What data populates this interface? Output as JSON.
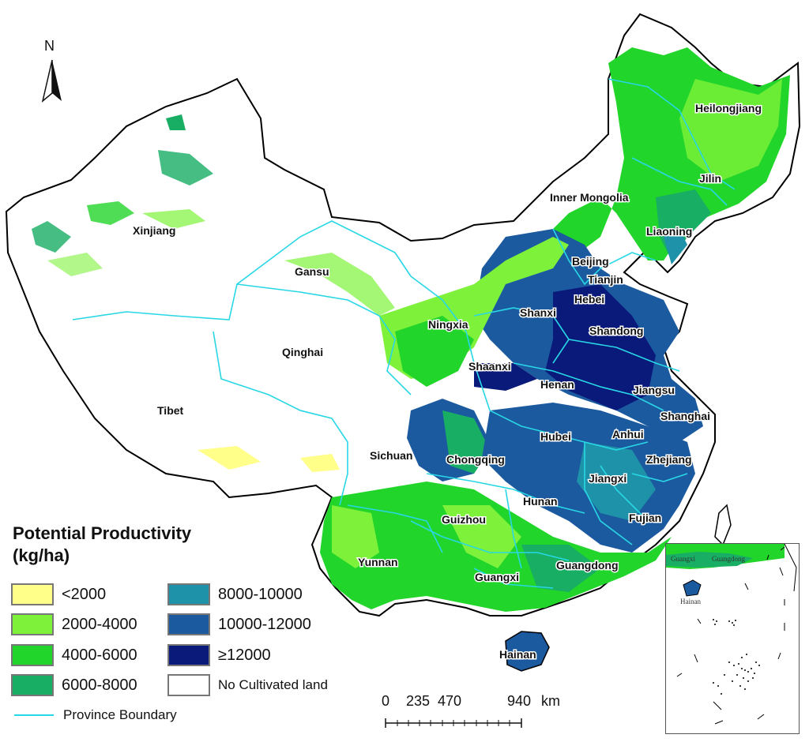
{
  "map": {
    "north_label": "N",
    "colors": {
      "lt2000": "#ffff8a",
      "c2000_4000": "#7ef23a",
      "c4000_6000": "#22d52a",
      "c6000_8000": "#18ae64",
      "c8000_10000": "#1e92a8",
      "c10000_12000": "#1c5aa0",
      "ge12000": "#0a1a7a",
      "boundary": "#28d7e6",
      "outline": "#000000"
    },
    "provinces": {
      "xinjiang": "Xinjiang",
      "gansu": "Gansu",
      "qinghai": "Qinghai",
      "tibet": "Tibet",
      "inner_mongolia": "Inner Mongolia",
      "heilongjiang": "Heilongjiang",
      "jilin": "Jilin",
      "liaoning": "Liaoning",
      "beijing": "Beijing",
      "tianjin": "Tianjin",
      "hebei": "Hebei",
      "ningxia": "Ningxia",
      "shanxi": "Shanxi",
      "shandong": "Shandong",
      "shaanxi": "Shaanxi",
      "henan": "Henan",
      "jiangsu": "Jiangsu",
      "shanghai": "Shanghai",
      "anhui": "Anhui",
      "hubei": "Hubei",
      "sichuan": "Sichuan",
      "chongqing": "Chongqing",
      "zhejiang": "Zhejiang",
      "jiangxi": "Jiangxi",
      "hunan": "Hunan",
      "fujian": "Fujian",
      "guizhou": "Guizhou",
      "yunnan": "Yunnan",
      "guangxi": "Guangxi",
      "guangdong": "Guangdong",
      "hainan": "Hainan"
    },
    "inset_labels": {
      "guangxi": "Guangxi",
      "guangdong": "Guangdong",
      "hainan": "Hainan"
    }
  },
  "legend": {
    "title_line1": "Potential Productivity",
    "title_line2": "(kg/ha)",
    "items": [
      {
        "label": "<2000",
        "color": "#ffff8a"
      },
      {
        "label": "2000-4000",
        "color": "#7ef23a"
      },
      {
        "label": "4000-6000",
        "color": "#22d52a"
      },
      {
        "label": "6000-8000",
        "color": "#18ae64"
      },
      {
        "label": "8000-10000",
        "color": "#1e92a8"
      },
      {
        "label": "10000-12000",
        "color": "#1c5aa0"
      },
      {
        "label": "≥12000",
        "color": "#0a1a7a"
      },
      {
        "label": "No Cultivated land",
        "color": "#ffffff"
      }
    ],
    "boundary_label": "Province Boundary"
  },
  "scale_bar": {
    "ticks": [
      "0",
      "235",
      "470",
      "940"
    ],
    "unit": "km"
  }
}
